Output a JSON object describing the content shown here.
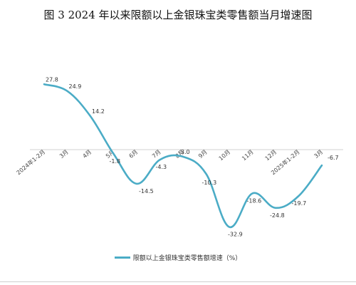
{
  "title": "图 3  2024 年以来限额以上金银珠宝类零售额当月增速图",
  "chart_data": {
    "type": "line",
    "categories": [
      "2024年1-2月",
      "3月",
      "4月",
      "5月",
      "6月",
      "7月",
      "8月",
      "9月",
      "10月",
      "11月",
      "12月",
      "2025年1-2月",
      "3月"
    ],
    "series": [
      {
        "name": "限额以上金银珠宝类零售额增速（%）",
        "values": [
          27.8,
          24.9,
          14.2,
          -1.8,
          -14.5,
          -4.3,
          -3.0,
          -10.3,
          -32.9,
          -18.6,
          -24.8,
          -19.7,
          -6.7
        ]
      }
    ],
    "ylim": [
      -40,
      35
    ],
    "grid": false,
    "legend": "bottom",
    "color": "#4bacc6"
  }
}
